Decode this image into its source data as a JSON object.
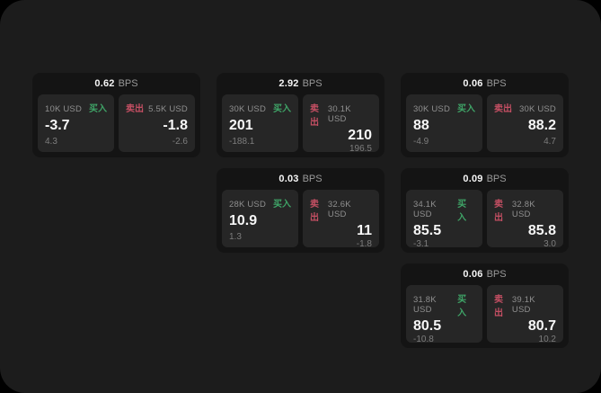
{
  "theme": {
    "outer_bg": "#000000",
    "page_bg": "#1c1c1c",
    "card_bg": "#141414",
    "panel_bg": "#262626",
    "buy_color": "#3fa467",
    "sell_color": "#c44f63",
    "value_color": "#f7f7f7",
    "muted_color": "#8f8f8f"
  },
  "labels": {
    "bps_unit": "BPS",
    "buy": "买入",
    "sell": "卖出"
  },
  "cards": [
    {
      "bps": "0.62",
      "buy": {
        "amount": "10K USD",
        "value": "-3.7",
        "delta": "4.3"
      },
      "sell": {
        "amount": "5.5K USD",
        "value": "-1.8",
        "delta": "-2.6"
      }
    },
    {
      "bps": "2.92",
      "buy": {
        "amount": "30K USD",
        "value": "201",
        "delta": "-188.1"
      },
      "sell": {
        "amount": "30.1K USD",
        "value": "210",
        "delta": "196.5"
      }
    },
    {
      "bps": "0.06",
      "buy": {
        "amount": "30K USD",
        "value": "88",
        "delta": "-4.9"
      },
      "sell": {
        "amount": "30K USD",
        "value": "88.2",
        "delta": "4.7"
      }
    },
    {
      "bps": "0.03",
      "buy": {
        "amount": "28K USD",
        "value": "10.9",
        "delta": "1.3"
      },
      "sell": {
        "amount": "32.6K USD",
        "value": "11",
        "delta": "-1.8"
      }
    },
    {
      "bps": "0.09",
      "buy": {
        "amount": "34.1K USD",
        "value": "85.5",
        "delta": "-3.1"
      },
      "sell": {
        "amount": "32.8K USD",
        "value": "85.8",
        "delta": "3.0"
      }
    },
    {
      "bps": "0.06",
      "buy": {
        "amount": "31.8K USD",
        "value": "80.5",
        "delta": "-10.8"
      },
      "sell": {
        "amount": "39.1K USD",
        "value": "80.7",
        "delta": "10.2"
      }
    }
  ]
}
